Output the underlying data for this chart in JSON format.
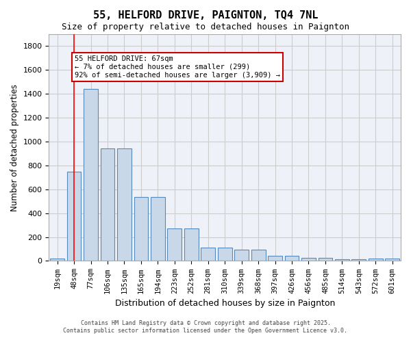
{
  "title_line1": "55, HELFORD DRIVE, PAIGNTON, TQ4 7NL",
  "title_line2": "Size of property relative to detached houses in Paignton",
  "xlabel": "Distribution of detached houses by size in Paignton",
  "ylabel": "Number of detached properties",
  "categories": [
    "19sqm",
    "48sqm",
    "77sqm",
    "106sqm",
    "135sqm",
    "165sqm",
    "194sqm",
    "223sqm",
    "252sqm",
    "281sqm",
    "310sqm",
    "339sqm",
    "368sqm",
    "397sqm",
    "426sqm",
    "456sqm",
    "485sqm",
    "514sqm",
    "543sqm",
    "572sqm",
    "601sqm"
  ],
  "bar_values": [
    20,
    745,
    1440,
    945,
    945,
    535,
    535,
    270,
    270,
    110,
    110,
    95,
    95,
    40,
    40,
    25,
    25,
    15,
    15,
    20,
    20
  ],
  "bar_color": "#c8d8e8",
  "bar_edge_color": "#5588bb",
  "grid_color": "#cccccc",
  "bg_color": "#eef2f8",
  "red_line_x": 1,
  "annotation_text": "55 HELFORD DRIVE: 67sqm\n← 7% of detached houses are smaller (299)\n92% of semi-detached houses are larger (3,909) →",
  "annotation_box_color": "#cc0000",
  "ylim": [
    0,
    1900
  ],
  "yticks": [
    0,
    200,
    400,
    600,
    800,
    1000,
    1200,
    1400,
    1600,
    1800
  ],
  "footer_line1": "Contains HM Land Registry data © Crown copyright and database right 2025.",
  "footer_line2": "Contains public sector information licensed under the Open Government Licence v3.0."
}
